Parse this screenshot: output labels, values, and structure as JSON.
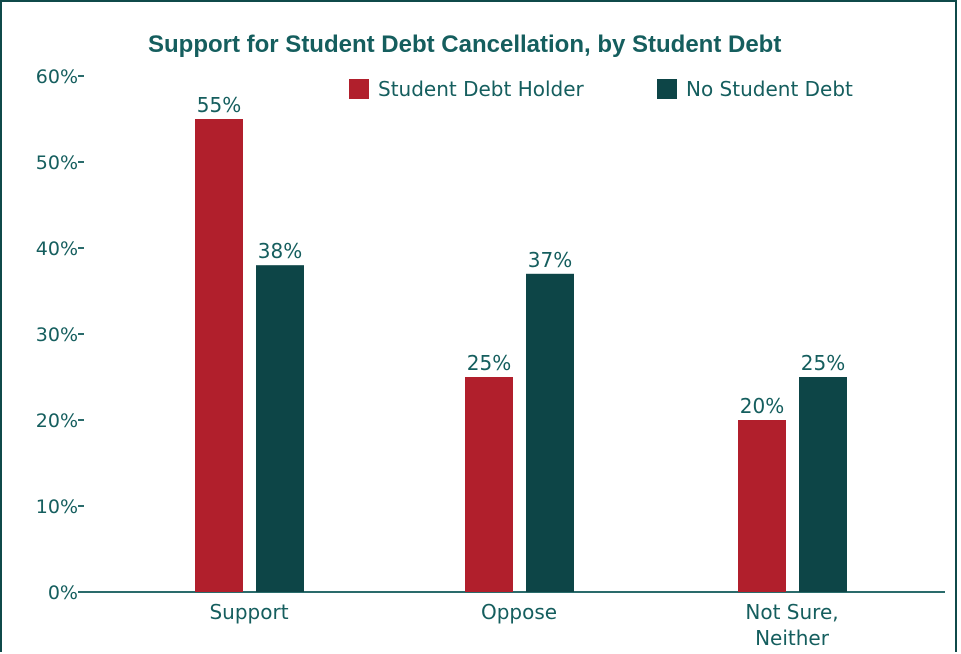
{
  "colors": {
    "text": "#155e5e",
    "axis": "#2a6b6b",
    "series": [
      "#b11f2c",
      "#0d4547"
    ]
  },
  "chart_data": {
    "type": "bar",
    "title": "Support for Student Debt Cancellation, by Student Debt",
    "categories": [
      [
        "Support"
      ],
      [
        "Oppose"
      ],
      [
        "Not Sure,",
        "Neither"
      ]
    ],
    "series": [
      {
        "name": "Student Debt Holder",
        "values": [
          55,
          25,
          20
        ],
        "labels": [
          "55%",
          "25%",
          "20%"
        ]
      },
      {
        "name": "No Student Debt",
        "values": [
          38,
          37,
          25
        ],
        "labels": [
          "38%",
          "37%",
          "25%"
        ]
      }
    ],
    "ylim": [
      0,
      60
    ],
    "yticks": [
      0,
      10,
      20,
      30,
      40,
      50,
      60
    ],
    "ytick_labels": [
      "0%",
      "10%",
      "20%",
      "30%",
      "40%",
      "50%",
      "60%"
    ],
    "grid": false,
    "legend": "top-right"
  }
}
